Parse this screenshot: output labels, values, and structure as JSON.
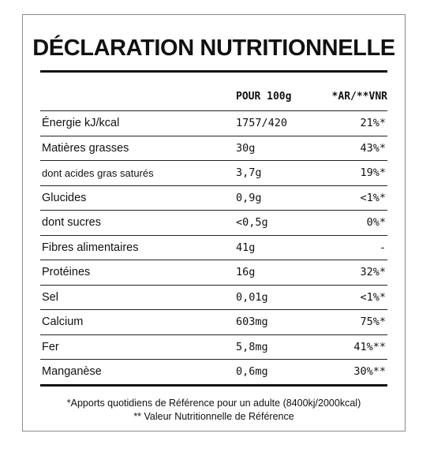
{
  "title": "DÉCLARATION NUTRITIONNELLE",
  "headers": {
    "per_100g": "POUR 100g",
    "ar_vnr": "*AR/**VNR"
  },
  "rows": [
    {
      "label": "Énergie kJ/kcal",
      "value": "1757/420",
      "ar": "21%*",
      "small": false
    },
    {
      "label": "Matières grasses",
      "value": "30g",
      "ar": "43%*",
      "small": false
    },
    {
      "label": "dont acides gras saturés",
      "value": "3,7g",
      "ar": "19%*",
      "small": true
    },
    {
      "label": "Glucides",
      "value": "0,9g",
      "ar": "<1%*",
      "small": false
    },
    {
      "label": "dont sucres",
      "value": "<0,5g",
      "ar": "0%*",
      "small": false
    },
    {
      "label": "Fibres alimentaires",
      "value": "41g",
      "ar": "-",
      "small": false
    },
    {
      "label": "Protéines",
      "value": "16g",
      "ar": "32%*",
      "small": false
    },
    {
      "label": "Sel",
      "value": "0,01g",
      "ar": "<1%*",
      "small": false
    },
    {
      "label": "Calcium",
      "value": "603mg",
      "ar": "75%*",
      "small": false
    },
    {
      "label": "Fer",
      "value": "5,8mg",
      "ar": "41%**",
      "small": false
    },
    {
      "label": "Manganèse",
      "value": "0,6mg",
      "ar": "30%**",
      "small": false
    }
  ],
  "footnotes": {
    "line1": "*Apports quotidiens de Référence pour un adulte (8400kj/2000kcal)",
    "line2": "** Valeur Nutritionnelle de Référence"
  }
}
